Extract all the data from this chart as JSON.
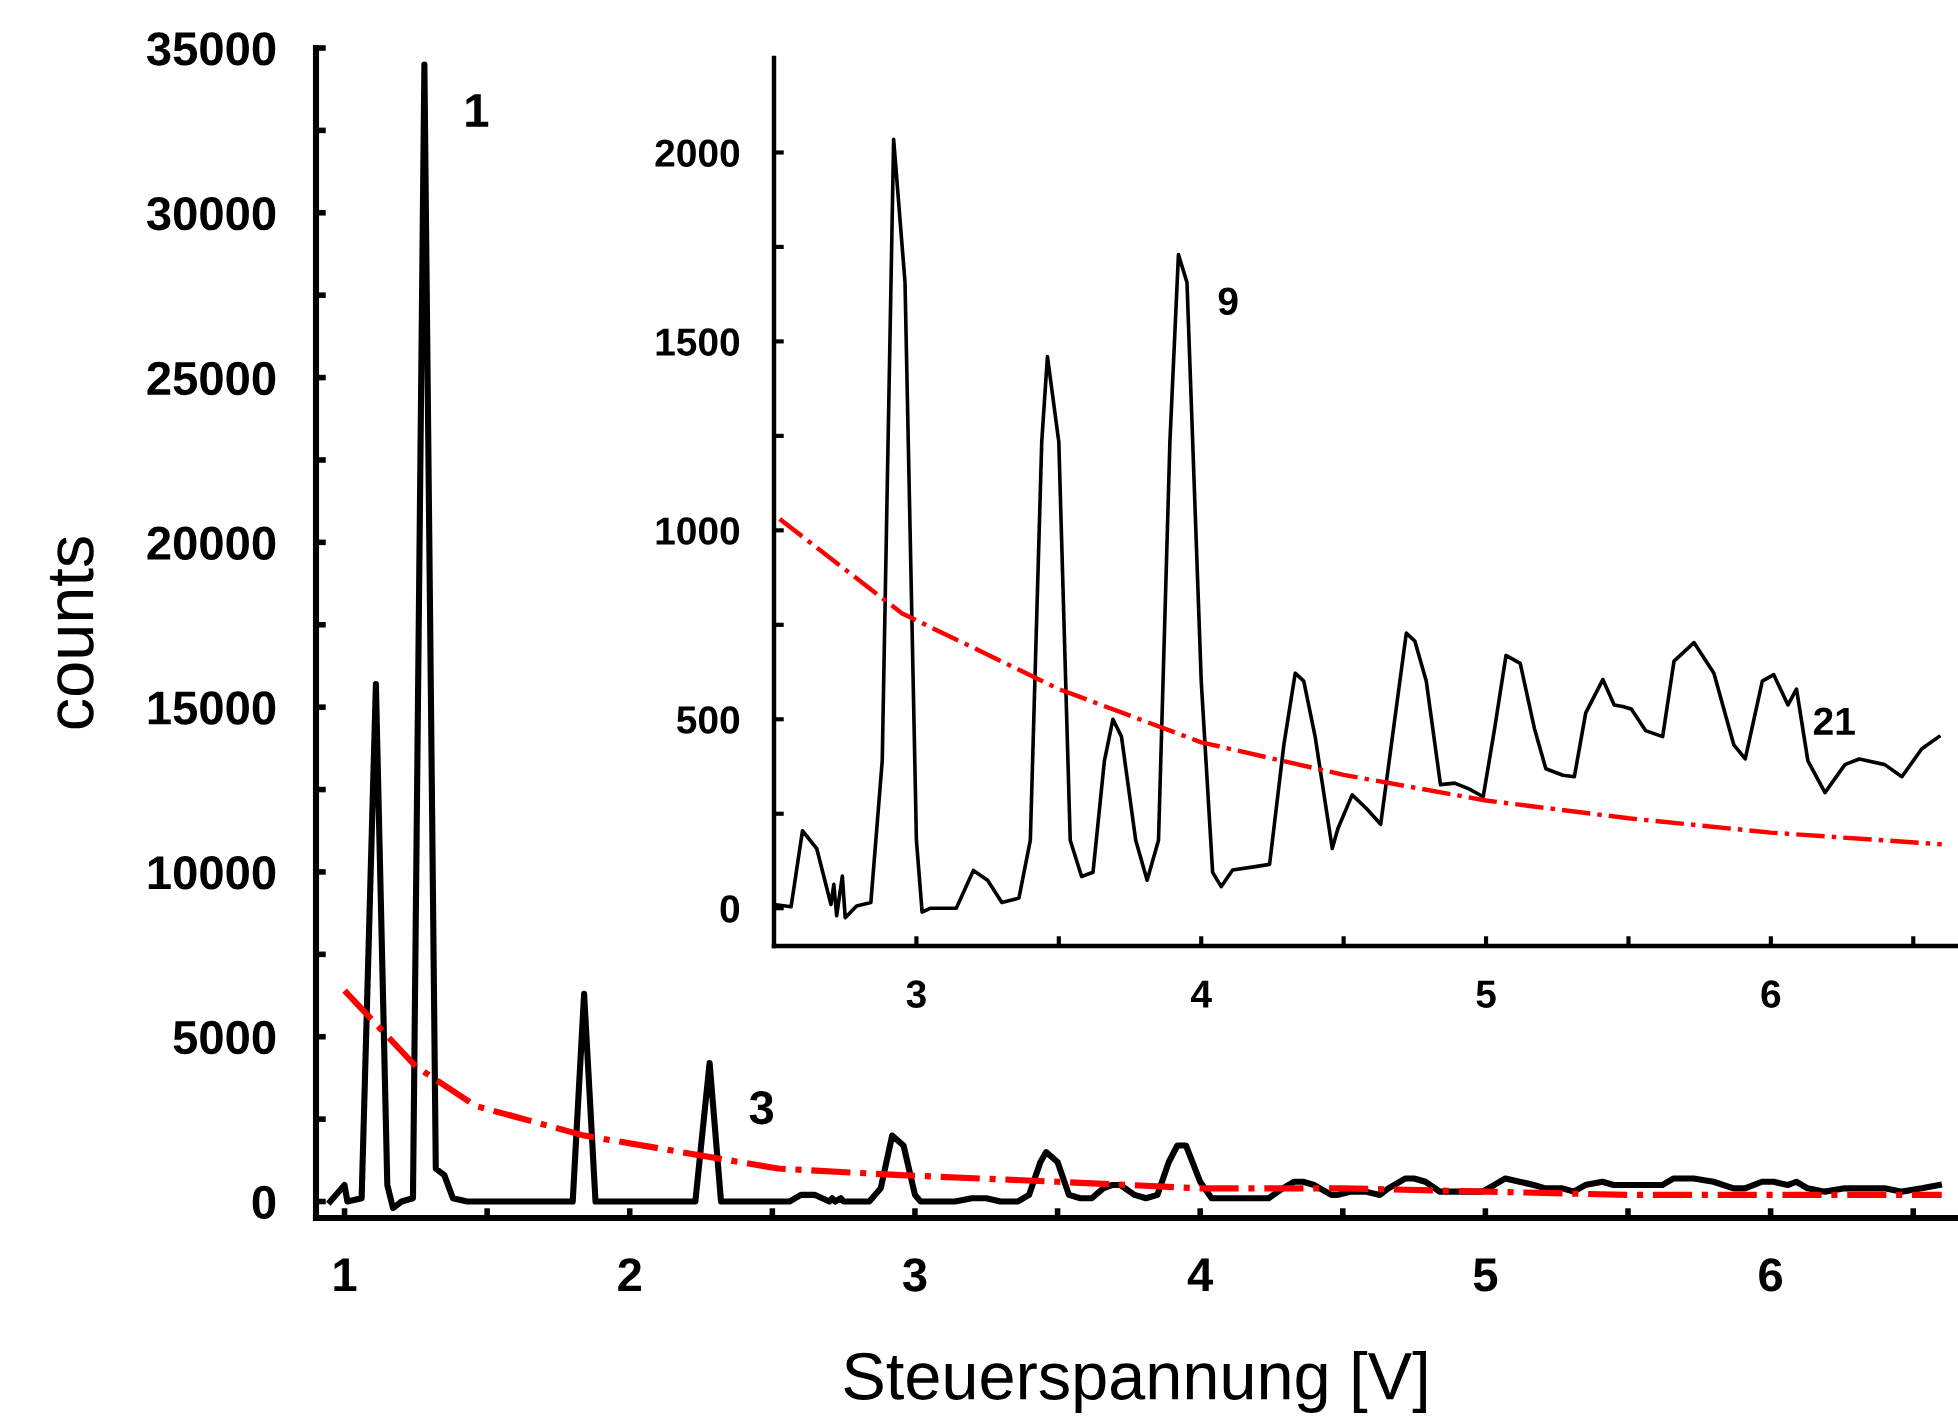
{
  "chart_data": [
    {
      "type": "line",
      "xlabel": "Steuerspannung [V]",
      "ylabel": "counts",
      "xlim": [
        0.9,
        6.65
      ],
      "ylim": [
        -500,
        35000
      ],
      "xticks": [
        1,
        {
          "value": 1.5,
          "label": null
        },
        2,
        {
          "value": 2.5,
          "label": null
        },
        3,
        {
          "value": 3.5,
          "label": null
        },
        4,
        {
          "value": 4.5,
          "label": null
        },
        5,
        {
          "value": 5.5,
          "label": null
        },
        6,
        {
          "value": 6.5,
          "label": null
        }
      ],
      "yticks": [
        0,
        {
          "value": 2500,
          "label": null
        },
        5000,
        {
          "value": 7500,
          "label": null
        },
        10000,
        {
          "value": 12500,
          "label": null
        },
        15000,
        {
          "value": 17500,
          "label": null
        },
        20000,
        {
          "value": 22500,
          "label": null
        },
        25000,
        {
          "value": 27500,
          "label": null
        },
        30000,
        {
          "value": 32500,
          "label": null
        },
        35000
      ],
      "legend": false,
      "annotations": [
        {
          "text": "1",
          "x": 1.28,
          "y": 34500
        },
        {
          "text": "3",
          "x": 2.28,
          "y": 4240
        }
      ],
      "series": [
        {
          "color": "#000000",
          "line_style": "solid",
          "x": [
            0.95,
            1.0,
            1.01,
            1.06,
            1.11,
            1.15,
            1.17,
            1.2,
            1.24,
            1.28,
            1.32,
            1.35,
            1.38,
            1.43,
            1.8,
            1.84,
            1.88,
            2.23,
            2.28,
            2.32,
            2.45,
            2.5,
            2.56,
            2.6,
            2.65,
            2.7,
            2.71,
            2.72,
            2.74,
            2.75,
            2.79,
            2.84,
            2.88,
            2.92,
            2.96,
            3.0,
            3.02,
            3.05,
            3.14,
            3.2,
            3.25,
            3.3,
            3.36,
            3.4,
            3.44,
            3.46,
            3.5,
            3.54,
            3.58,
            3.62,
            3.66,
            3.69,
            3.72,
            3.77,
            3.81,
            3.85,
            3.89,
            3.92,
            3.95,
            4.0,
            4.04,
            4.07,
            4.11,
            4.19,
            4.24,
            4.29,
            4.33,
            4.36,
            4.4,
            4.46,
            4.48,
            4.53,
            4.58,
            4.63,
            4.66,
            4.72,
            4.75,
            4.79,
            4.84,
            4.89,
            4.94,
            4.99,
            5.03,
            5.07,
            5.12,
            5.17,
            5.21,
            5.27,
            5.31,
            5.35,
            5.41,
            5.45,
            5.48,
            5.51,
            5.56,
            5.62,
            5.66,
            5.73,
            5.8,
            5.87,
            5.91,
            5.97,
            6.01,
            6.06,
            6.09,
            6.13,
            6.19,
            6.26,
            6.31,
            6.4,
            6.46,
            6.53,
            6.59
          ],
          "values": [
            0,
            500,
            0,
            100,
            15700,
            500,
            -200,
            0,
            100,
            34500,
            1000,
            800,
            100,
            0,
            0,
            6300,
            0,
            0,
            4200,
            0,
            0,
            0,
            0,
            200,
            200,
            0,
            100,
            0,
            100,
            0,
            0,
            0,
            400,
            2000,
            1700,
            200,
            0,
            0,
            0,
            100,
            100,
            0,
            0,
            200,
            1200,
            1500,
            1200,
            200,
            100,
            100,
            400,
            500,
            500,
            200,
            100,
            200,
            1200,
            1700,
            1700,
            600,
            100,
            100,
            100,
            100,
            100,
            400,
            600,
            600,
            500,
            200,
            200,
            300,
            300,
            200,
            400,
            700,
            700,
            600,
            300,
            300,
            300,
            300,
            500,
            700,
            600,
            500,
            400,
            400,
            300,
            500,
            600,
            500,
            500,
            500,
            500,
            500,
            700,
            700,
            600,
            400,
            400,
            600,
            600,
            500,
            600,
            400,
            300,
            400,
            400,
            400,
            300,
            400,
            500
          ]
        },
        {
          "color": "#ff0000",
          "line_style": "dashdot",
          "x": [
            1.0,
            1.25,
            1.46,
            1.84,
            2.52,
            2.95,
            3.5,
            4.0,
            4.5,
            5.0,
            5.5,
            6.0,
            6.6
          ],
          "values": [
            6400,
            4100,
            2900,
            2000,
            1000,
            800,
            600,
            400,
            400,
            300,
            200,
            200,
            200
          ]
        }
      ]
    },
    {
      "type": "line",
      "xlim": [
        2.5,
        6.65
      ],
      "ylim": [
        -100,
        2250
      ],
      "xticks": [
        3,
        {
          "value": 3.5,
          "label": null
        },
        4,
        {
          "value": 4.5,
          "label": null
        },
        5,
        {
          "value": 5.5,
          "label": null
        },
        6,
        {
          "value": 6.5,
          "label": null
        }
      ],
      "yticks": [
        0,
        {
          "value": 250,
          "label": null
        },
        500,
        {
          "value": 750,
          "label": null
        },
        1000,
        {
          "value": 1250,
          "label": null
        },
        1500,
        {
          "value": 1750,
          "label": null
        },
        2000
      ],
      "legend": false,
      "annotations": [
        {
          "text": "9",
          "x": 3.92,
          "y": 1730
        },
        {
          "text": "21",
          "x": 6.01,
          "y": 618
        }
      ],
      "series": [
        {
          "color": "#000000",
          "line_style": "solid",
          "x": [
            2.5,
            2.56,
            2.6,
            2.65,
            2.7,
            2.71,
            2.72,
            2.74,
            2.75,
            2.79,
            2.84,
            2.88,
            2.92,
            2.96,
            3.0,
            3.02,
            3.05,
            3.14,
            3.2,
            3.25,
            3.3,
            3.36,
            3.4,
            3.44,
            3.46,
            3.5,
            3.54,
            3.58,
            3.62,
            3.66,
            3.69,
            3.72,
            3.77,
            3.81,
            3.85,
            3.89,
            3.92,
            3.95,
            4.0,
            4.04,
            4.07,
            4.11,
            4.19,
            4.24,
            4.29,
            4.33,
            4.36,
            4.4,
            4.46,
            4.48,
            4.53,
            4.58,
            4.63,
            4.66,
            4.72,
            4.75,
            4.79,
            4.84,
            4.89,
            4.94,
            4.99,
            5.03,
            5.07,
            5.12,
            5.17,
            5.21,
            5.27,
            5.31,
            5.35,
            5.41,
            5.45,
            5.48,
            5.51,
            5.56,
            5.62,
            5.66,
            5.73,
            5.8,
            5.87,
            5.91,
            5.97,
            6.01,
            6.06,
            6.09,
            6.13,
            6.19,
            6.26,
            6.31,
            6.4,
            6.46,
            6.53,
            6.59
          ],
          "values": [
            10,
            4,
            205,
            158,
            10,
            63,
            -20,
            85,
            -25,
            6,
            15,
            390,
            2035,
            1656,
            180,
            -10,
            0,
            0,
            100,
            74,
            15,
            27,
            180,
            1234,
            1460,
            1234,
            180,
            84,
            95,
            390,
            500,
            454,
            180,
            74,
            180,
            1234,
            1730,
            1656,
            601,
            95,
            57,
            101,
            110,
            116,
            432,
            622,
            601,
            454,
            158,
            211,
            300,
            264,
            222,
            390,
            728,
            707,
            601,
            327,
            331,
            316,
            295,
            475,
            669,
            648,
            475,
            369,
            352,
            348,
            517,
            605,
            538,
            534,
            527,
            470,
            454,
            654,
            703,
            622,
            432,
            395,
            601,
            618,
            538,
            580,
            390,
            306,
            380,
            395,
            380,
            348,
            422,
            454
          ]
        },
        {
          "color": "#ff0000",
          "line_style": "dashdot",
          "x": [
            2.52,
            2.95,
            3.5,
            4.0,
            4.5,
            5.0,
            5.5,
            6.0,
            6.6
          ],
          "values": [
            1030,
            780,
            580,
            439,
            353,
            285,
            238,
            200,
            169
          ]
        }
      ]
    }
  ]
}
